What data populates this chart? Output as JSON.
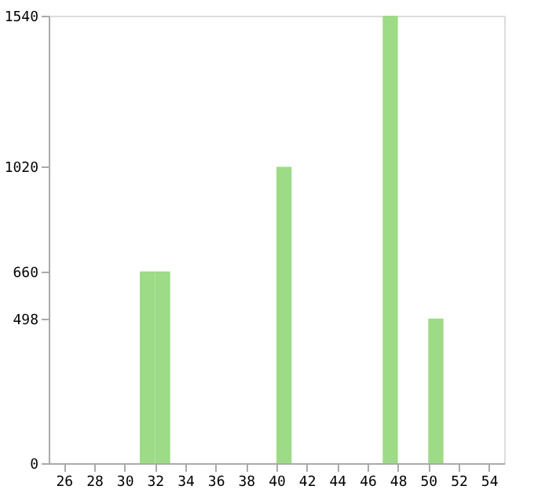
{
  "chart_data": {
    "type": "histogram",
    "bins": [
      25,
      26,
      27,
      28,
      29,
      30,
      31,
      32,
      33,
      34,
      35,
      36,
      37,
      38,
      39,
      40,
      41,
      42,
      43,
      44,
      45,
      46,
      47,
      48,
      49,
      50,
      51,
      52,
      53,
      54,
      55
    ],
    "values": [
      0,
      0,
      0,
      0,
      0,
      0,
      660,
      660,
      0,
      0,
      0,
      0,
      0,
      0,
      0,
      1020,
      0,
      0,
      0,
      0,
      0,
      0,
      1540,
      0,
      0,
      498,
      0,
      0,
      0,
      0
    ],
    "color": "#9ddb86",
    "xlim": [
      25,
      55
    ],
    "xticks": [
      26,
      28,
      30,
      32,
      34,
      36,
      38,
      40,
      42,
      44,
      46,
      48,
      50,
      52,
      54
    ],
    "ylim": [
      0,
      1540
    ],
    "yticks": [
      0,
      498,
      660,
      1020,
      1540
    ],
    "grid": false
  }
}
